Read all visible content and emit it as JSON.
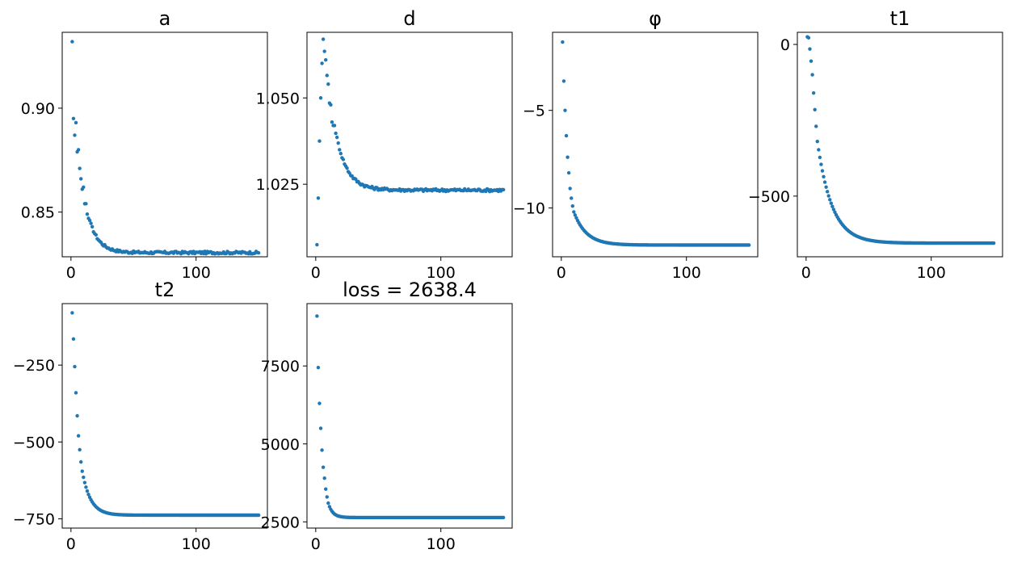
{
  "figure": {
    "marker_color": "#1f77b4",
    "background": "#ffffff"
  },
  "chart_data": [
    {
      "type": "scatter",
      "title": "a",
      "xlim": [
        -7,
        157
      ],
      "ylim": [
        0.8285,
        0.9365
      ],
      "xticks": [
        0,
        100
      ],
      "xtick_labels": [
        "0",
        "100"
      ],
      "yticks": [
        0.85,
        0.9
      ],
      "ytick_labels": [
        "0.85",
        "0.90"
      ],
      "x_start": 1,
      "x_end": 150,
      "initial": [
        0.932,
        0.895,
        0.887,
        0.893,
        0.879,
        0.88,
        0.871,
        0.866,
        0.861,
        0.862,
        0.854,
        0.854,
        0.849,
        0.847,
        0.846
      ],
      "final": 0.8305,
      "decay_rate": 0.13,
      "noise": 0.0006
    },
    {
      "type": "scatter",
      "title": "d",
      "xlim": [
        -7,
        157
      ],
      "ylim": [
        1.004,
        1.069
      ],
      "xticks": [
        0,
        100
      ],
      "xtick_labels": [
        "0",
        "100"
      ],
      "yticks": [
        1.025,
        1.05
      ],
      "ytick_labels": [
        "1.025",
        "1.050"
      ],
      "x_start": 1,
      "x_end": 150,
      "initial": [
        1.0075,
        1.021,
        1.0375,
        1.05,
        1.06,
        1.067,
        1.0635,
        1.061,
        1.0565,
        1.054,
        1.0485,
        1.048,
        1.043,
        1.042,
        1.042
      ],
      "final": 1.0233,
      "decay_rate": 0.11,
      "noise": 0.0004
    },
    {
      "type": "scatter",
      "title": "φ",
      "xlim": [
        -7,
        157
      ],
      "ylim": [
        -12.5,
        -1.0
      ],
      "xticks": [
        0,
        100
      ],
      "xtick_labels": [
        "0",
        "100"
      ],
      "yticks": [
        -10,
        -5
      ],
      "ytick_labels": [
        "−10",
        "−5"
      ],
      "x_start": 1,
      "x_end": 150,
      "initial": [
        -1.5,
        -3.5,
        -5.0,
        -6.3,
        -7.4,
        -8.2,
        -9.0,
        -9.5,
        -9.9,
        -10.2
      ],
      "final": -11.9,
      "decay_rate": 0.1,
      "noise": 0.0
    },
    {
      "type": "scatter",
      "title": "t1",
      "xlim": [
        -7,
        157
      ],
      "ylim": [
        -700,
        40
      ],
      "xticks": [
        0,
        100
      ],
      "xtick_labels": [
        "0",
        "100"
      ],
      "yticks": [
        -500,
        0
      ],
      "ytick_labels": [
        "−500",
        "0"
      ],
      "x_start": 1,
      "x_end": 150,
      "initial": [
        25,
        22,
        -15,
        -55,
        -100,
        -160,
        -215,
        -270,
        -320
      ],
      "final": -655,
      "decay_rate": 0.085,
      "noise": 0.0
    },
    {
      "type": "scatter",
      "title": "t2",
      "xlim": [
        -7,
        157
      ],
      "ylim": [
        -780,
        -50
      ],
      "xticks": [
        0,
        100
      ],
      "xtick_labels": [
        "0",
        "100"
      ],
      "yticks": [
        -750,
        -500,
        -250
      ],
      "ytick_labels": [
        "−750",
        "−500",
        "−250"
      ],
      "x_start": 1,
      "x_end": 150,
      "initial": [
        -80,
        -165,
        -255,
        -340,
        -415,
        -480,
        -525,
        -565,
        -595
      ],
      "final": -738,
      "decay_rate": 0.15,
      "noise": 0.0
    },
    {
      "type": "scatter",
      "title": "loss = 2638.4",
      "xlim": [
        -7,
        157
      ],
      "ylim": [
        2300,
        9500
      ],
      "xticks": [
        0,
        100
      ],
      "xtick_labels": [
        "0",
        "100"
      ],
      "yticks": [
        2500,
        5000,
        7500
      ],
      "ytick_labels": [
        "2500",
        "5000",
        "7500"
      ],
      "x_start": 1,
      "x_end": 150,
      "initial": [
        9100,
        7450,
        6300,
        5500,
        4800,
        4250,
        3900,
        3550,
        3300,
        3100
      ],
      "final": 2638.4,
      "decay_rate": 0.28,
      "noise": 0.0
    }
  ]
}
